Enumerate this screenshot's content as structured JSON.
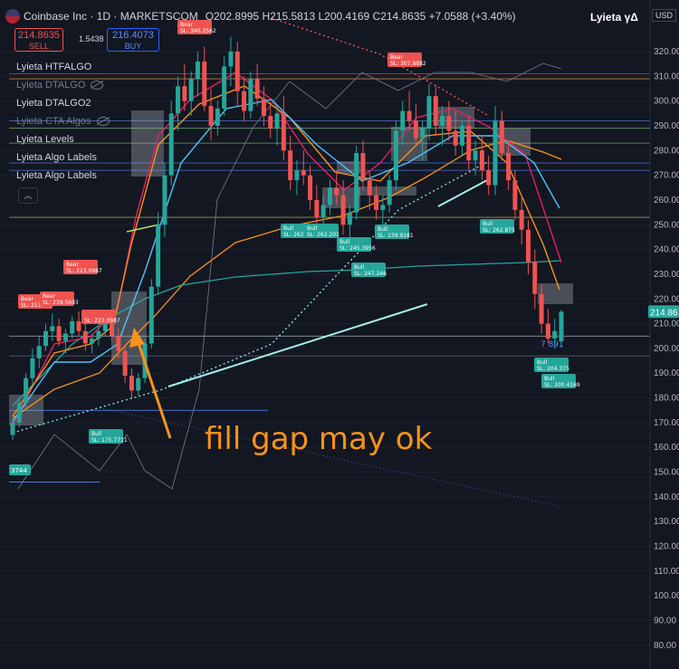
{
  "header": {
    "title": "Coinbase Inc · 1D · MARKETSCOM",
    "ohlc_line": "O202.8995 H215.5813 L200.4169 C214.8635 +7.0588 (+3.40%)",
    "brand": "Lyieta γΔ"
  },
  "trade": {
    "sell_price": "214.8635",
    "sell_label": "SELL",
    "buy_price": "216.4073",
    "buy_label": "BUY",
    "spread": "1.5438"
  },
  "legend": [
    {
      "label": "Lyieta HTFALGO",
      "dim": false,
      "hidden_icon": false
    },
    {
      "label": "Lyieta DTALGO",
      "dim": true,
      "hidden_icon": true
    },
    {
      "label": "Lyieta DTALGO2",
      "dim": false,
      "hidden_icon": false
    },
    {
      "label": "Lyieta CTA Algos",
      "dim": true,
      "hidden_icon": true
    },
    {
      "label": "Lyieta Levels",
      "dim": false,
      "hidden_icon": false
    },
    {
      "label": "Lyieta Algo Labels",
      "dim": false,
      "hidden_icon": false
    },
    {
      "label": "Lyieta Algo Labels",
      "dim": false,
      "hidden_icon": false
    }
  ],
  "collapse_icon": "chevron-up-icon",
  "currency": "USD",
  "annotation": "fill gap may ok",
  "colors": {
    "bg": "#131722",
    "up": "#26a69a",
    "down": "#ef5350",
    "annotation": "#f7931a"
  },
  "chart_data": {
    "type": "line",
    "y_axis_ticks": [
      320,
      310,
      300,
      290,
      280,
      270,
      260,
      250,
      240,
      230,
      220,
      210,
      200,
      190,
      180,
      170,
      160,
      150,
      140,
      130,
      120,
      110,
      100,
      90,
      80
    ],
    "y_tick_labels": [
      "320.00",
      "310.00",
      "300.00",
      "290.00",
      "280.00",
      "270.00",
      "260.00",
      "250.00",
      "240.00",
      "230.00",
      "220.00",
      "210.00",
      "200.00",
      "190.00",
      "180.00",
      "170.00",
      "160.00",
      "150.00",
      "140.00",
      "130.00",
      "120.00",
      "110.00",
      "100.00",
      "90.00",
      "80.00"
    ],
    "ylim": [
      73,
      329
    ],
    "last_price": 214.8635,
    "last_price_label": "214.86",
    "candles": [
      [
        165,
        172,
        163,
        170
      ],
      [
        170,
        180,
        168,
        178
      ],
      [
        178,
        190,
        176,
        188
      ],
      [
        188,
        200,
        185,
        196
      ],
      [
        196,
        205,
        192,
        201
      ],
      [
        201,
        210,
        199,
        207
      ],
      [
        207,
        214,
        203,
        209
      ],
      [
        209,
        212,
        201,
        203
      ],
      [
        203,
        208,
        198,
        206
      ],
      [
        206,
        213,
        204,
        211
      ],
      [
        211,
        215,
        205,
        207
      ],
      [
        207,
        210,
        199,
        202
      ],
      [
        202,
        206,
        198,
        204
      ],
      [
        204,
        209,
        201,
        207
      ],
      [
        207,
        213,
        205,
        211
      ],
      [
        211,
        212,
        203,
        205
      ],
      [
        205,
        208,
        196,
        199
      ],
      [
        199,
        201,
        186,
        189
      ],
      [
        189,
        192,
        180,
        183
      ],
      [
        183,
        190,
        181,
        188
      ],
      [
        188,
        204,
        186,
        202
      ],
      [
        202,
        228,
        200,
        225
      ],
      [
        225,
        255,
        222,
        250
      ],
      [
        250,
        275,
        245,
        270
      ],
      [
        270,
        300,
        266,
        295
      ],
      [
        295,
        310,
        288,
        306
      ],
      [
        306,
        315,
        296,
        300
      ],
      [
        300,
        312,
        294,
        309
      ],
      [
        309,
        320,
        302,
        316
      ],
      [
        316,
        322,
        296,
        298
      ],
      [
        298,
        305,
        284,
        290
      ],
      [
        290,
        300,
        286,
        297
      ],
      [
        297,
        318,
        294,
        314
      ],
      [
        314,
        326,
        306,
        320
      ],
      [
        320,
        324,
        298,
        304
      ],
      [
        304,
        310,
        292,
        296
      ],
      [
        296,
        312,
        293,
        309
      ],
      [
        309,
        315,
        298,
        301
      ],
      [
        301,
        306,
        290,
        294
      ],
      [
        294,
        300,
        285,
        289
      ],
      [
        289,
        298,
        282,
        295
      ],
      [
        295,
        302,
        276,
        280
      ],
      [
        280,
        286,
        264,
        268
      ],
      [
        268,
        276,
        262,
        272
      ],
      [
        272,
        280,
        266,
        270
      ],
      [
        270,
        274,
        256,
        260
      ],
      [
        260,
        266,
        250,
        253
      ],
      [
        253,
        262,
        248,
        258
      ],
      [
        258,
        268,
        254,
        265
      ],
      [
        265,
        272,
        258,
        262
      ],
      [
        262,
        268,
        246,
        250
      ],
      [
        250,
        258,
        244,
        255
      ],
      [
        255,
        282,
        252,
        279
      ],
      [
        279,
        284,
        264,
        268
      ],
      [
        268,
        272,
        256,
        262
      ],
      [
        262,
        266,
        252,
        256
      ],
      [
        256,
        262,
        248,
        258
      ],
      [
        258,
        270,
        255,
        268
      ],
      [
        268,
        292,
        264,
        288
      ],
      [
        288,
        300,
        282,
        296
      ],
      [
        296,
        304,
        288,
        292
      ],
      [
        292,
        299,
        282,
        285
      ],
      [
        285,
        292,
        276,
        289
      ],
      [
        289,
        307,
        284,
        302
      ],
      [
        302,
        306,
        286,
        290
      ],
      [
        290,
        298,
        282,
        294
      ],
      [
        294,
        300,
        284,
        288
      ],
      [
        288,
        296,
        278,
        282
      ],
      [
        282,
        292,
        278,
        290
      ],
      [
        290,
        294,
        272,
        276
      ],
      [
        276,
        284,
        270,
        280
      ],
      [
        280,
        286,
        268,
        272
      ],
      [
        272,
        278,
        262,
        266
      ],
      [
        266,
        298,
        262,
        292
      ],
      [
        292,
        296,
        276,
        279
      ],
      [
        279,
        284,
        264,
        268
      ],
      [
        268,
        272,
        252,
        256
      ],
      [
        256,
        262,
        242,
        248
      ],
      [
        248,
        252,
        230,
        235
      ],
      [
        235,
        240,
        216,
        222
      ],
      [
        222,
        226,
        206,
        210
      ],
      [
        210,
        216,
        202,
        204
      ],
      [
        204,
        212,
        200,
        207
      ],
      [
        202.8995,
        215.5813,
        200.4169,
        214.8635
      ]
    ],
    "series": [],
    "signals": [
      {
        "text": "Bear SL: 213",
        "i": 2,
        "price": 219,
        "kind": "bear"
      },
      {
        "text": "Bear SL: 239.5693",
        "i": 9,
        "price": 219,
        "kind": "bear"
      },
      {
        "text": "Bear SL: 223.0987",
        "i": 16,
        "price": 232,
        "kind": "bear"
      },
      {
        "text": "SL: 223.0987",
        "i": 20,
        "price": 216,
        "kind": "bear"
      },
      {
        "text": "Bear SL: 340.2562",
        "i": 43,
        "price": 321,
        "kind": "bear"
      },
      {
        "text": "Bear SL: 307.8882",
        "i": 102,
        "price": 309,
        "kind": "bear"
      },
      {
        "text": "Bull SL: 175.7711",
        "i": 22,
        "price": 169,
        "kind": "bull"
      },
      {
        "text": "Bull SL: 262.2",
        "i": 73,
        "price": 249,
        "kind": "bull"
      },
      {
        "text": "Bull SL: 262.201",
        "i": 81,
        "price": 249,
        "kind": "bull"
      },
      {
        "text": "Bull SL: 245.3956",
        "i": 87,
        "price": 242,
        "kind": "bull"
      },
      {
        "text": "Bull SL: 247.246",
        "i": 93,
        "price": 233,
        "kind": "bull"
      },
      {
        "text": "Bull SL: 239.9181",
        "i": 102,
        "price": 249,
        "kind": "bull"
      },
      {
        "text": "Bull SL: 262.875",
        "i": 131,
        "price": 251,
        "kind": "bull"
      },
      {
        "text": "Bull SL: 204.375",
        "i": 144,
        "price": 191,
        "kind": "bull"
      },
      {
        "text": "Bull SL: 200.4169",
        "i": 146,
        "price": 183,
        "kind": "bull"
      }
    ],
    "left_edge_label": "3744",
    "marker_text": "7 891"
  }
}
